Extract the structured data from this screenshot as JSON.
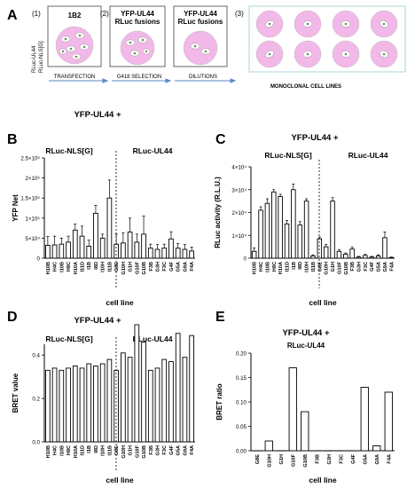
{
  "panelA": {
    "letter": "A",
    "steps": [
      {
        "num": "(1)",
        "title": "1B2"
      },
      {
        "num": "(2)",
        "title": "YFP-UL44\nRLuc fusions"
      },
      {
        "num": "",
        "title": "YFP-UL44\nRLuc fusions"
      },
      {
        "num": "(3)",
        "title": ""
      }
    ],
    "side_label_1": "RLuc-UL44",
    "side_label_2": "RLuc-NLS[G]",
    "arrows": [
      "TRANSFECTION",
      "G418 SELECTION",
      "DILUTIONS",
      "MONOCLONAL CELL LINES"
    ]
  },
  "chart_data": [
    {
      "panel": "B",
      "type": "bar",
      "title": "YFP-UL44 +",
      "group_labels": [
        "RLuc-NLS[G]",
        "RLuc-UL44"
      ],
      "ylabel": "YFP Net",
      "xlabel": "cell line",
      "ylim": [
        0,
        250000
      ],
      "yticks": [
        "0",
        "5×10⁴",
        "1×10⁵",
        "1.5×10⁵",
        "2×10⁵",
        "2.5×10⁵"
      ],
      "ytick_values": [
        0,
        50000,
        100000,
        150000,
        200000,
        250000
      ],
      "categories": [
        "H10B",
        "H4C",
        "I10B",
        "H8C",
        "H10A",
        "I11D",
        "I1B",
        "I8D",
        "I10H",
        "I11B",
        "G8E",
        "G10H",
        "G1H",
        "G10F",
        "G10B",
        "F3B",
        "G3H",
        "F3C",
        "G4F",
        "G5A",
        "G9A",
        "F4A"
      ],
      "values": [
        32000,
        33000,
        35000,
        40000,
        70000,
        55000,
        30000,
        112000,
        50000,
        150000,
        35000,
        38000,
        65000,
        40000,
        60000,
        25000,
        22000,
        25000,
        48000,
        25000,
        22000,
        18000
      ],
      "errors": [
        22000,
        22000,
        15000,
        15000,
        15000,
        25000,
        15000,
        20000,
        10000,
        45000,
        25000,
        25000,
        35000,
        20000,
        45000,
        10000,
        12000,
        10000,
        18000,
        12000,
        12000,
        10000
      ],
      "divider_after": 9
    },
    {
      "panel": "C",
      "type": "bar",
      "title": "YFP-UL44 +",
      "group_labels": [
        "RLuc-NLS[G]",
        "RLuc-UL44"
      ],
      "ylabel": "RLuc activity (R.L.U.)",
      "xlabel": "cell line",
      "ylim": [
        0,
        40000
      ],
      "yticks": [
        "0",
        "1×10⁴",
        "2×10⁴",
        "3×10⁴",
        "4×10⁴"
      ],
      "ytick_values": [
        0,
        10000,
        20000,
        30000,
        40000
      ],
      "categories": [
        "H10B",
        "H4C",
        "I10B",
        "H8C",
        "H10A",
        "I11D",
        "I1B",
        "I8D",
        "I10H",
        "I11B",
        "G8E",
        "G10H",
        "G1H",
        "G10F",
        "G10B",
        "F3B",
        "G3H",
        "F3C",
        "G4F",
        "G5A",
        "G9A",
        "F4A"
      ],
      "values": [
        3000,
        21000,
        24000,
        29000,
        27000,
        15000,
        30000,
        14500,
        25000,
        1000,
        8500,
        5000,
        25000,
        3000,
        1800,
        4000,
        500,
        1200,
        500,
        1000,
        9000,
        300
      ],
      "errors": [
        1500,
        1500,
        2000,
        1000,
        1000,
        1500,
        2500,
        1500,
        1000,
        500,
        800,
        1000,
        1500,
        800,
        500,
        800,
        300,
        500,
        300,
        500,
        2500,
        200
      ],
      "divider_after": 9
    },
    {
      "panel": "D",
      "type": "bar",
      "title": "YFP-UL44 +",
      "group_labels": [
        "RLuc-NLS[G]",
        "RLuc-UL44"
      ],
      "ylabel": "BRET value",
      "xlabel": "cell line",
      "ylim": [
        0,
        0.45
      ],
      "yticks": [
        "0.0",
        "0.2",
        "0.4"
      ],
      "ytick_values": [
        0,
        0.2,
        0.4
      ],
      "categories": [
        "H10B",
        "H4C",
        "I10B",
        "H8C",
        "H10A",
        "I11D",
        "I1B",
        "I8D",
        "I10H",
        "I11B",
        "G8E",
        "G10H",
        "G1H",
        "G10F",
        "G10B",
        "F3B",
        "G3H",
        "F3C",
        "G4F",
        "G5A",
        "G9A",
        "F4A"
      ],
      "values": [
        0.33,
        0.34,
        0.33,
        0.34,
        0.35,
        0.34,
        0.36,
        0.35,
        0.36,
        0.38,
        0.33,
        0.41,
        0.39,
        0.54,
        0.46,
        0.33,
        0.34,
        0.38,
        0.37,
        0.5,
        0.39,
        0.49
      ],
      "divider_after": 9
    },
    {
      "panel": "E",
      "type": "bar",
      "title": "YFP-UL44 +",
      "subtitle": "RLuc-UL44",
      "ylabel": "BRET ratio",
      "xlabel": "cell line",
      "ylim": [
        0,
        0.2
      ],
      "yticks": [
        "0.00",
        "0.05",
        "0.10",
        "0.15",
        "0.20"
      ],
      "ytick_values": [
        0,
        0.05,
        0.1,
        0.15,
        0.2
      ],
      "categories": [
        "G8E",
        "G10H",
        "G1H",
        "G10F",
        "G10B",
        "F3B",
        "G3H",
        "F3C",
        "G4F",
        "G5A",
        "G9A",
        "F4A"
      ],
      "values": [
        0.0,
        0.02,
        0.0,
        0.17,
        0.08,
        0.0,
        0.0,
        0.0,
        0.0,
        0.13,
        0.01,
        0.12
      ]
    }
  ]
}
